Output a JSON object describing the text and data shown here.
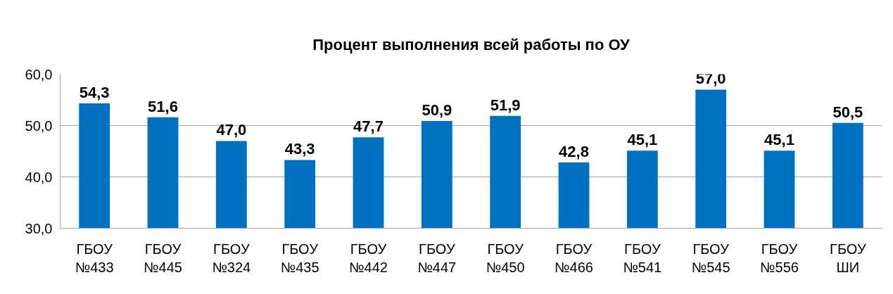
{
  "chart_data": {
    "type": "bar",
    "title": "Процент выполнения всей работы по ОУ",
    "categories": [
      "ГБОУ\n№433",
      "ГБОУ\n№445",
      "ГБОУ\n№324",
      "ГБОУ\n№435",
      "ГБОУ\n№442",
      "ГБОУ\n№447",
      "ГБОУ\n№450",
      "ГБОУ\n№466",
      "ГБОУ\n№541",
      "ГБОУ\n№545",
      "ГБОУ\n№556",
      "ГБОУ\nШИ"
    ],
    "values": [
      54.3,
      51.6,
      47.0,
      43.3,
      47.7,
      50.9,
      51.9,
      42.8,
      45.1,
      57.0,
      45.1,
      50.5
    ],
    "value_labels": [
      "54,3",
      "51,6",
      "47,0",
      "43,3",
      "47,7",
      "50,9",
      "51,9",
      "42,8",
      "45,1",
      "57,0",
      "45,1",
      "50,5"
    ],
    "color": "#0070c0",
    "ylim": [
      30,
      60
    ],
    "yticks": [
      {
        "value": 30,
        "label": "30,0"
      },
      {
        "value": 40,
        "label": "40,0"
      },
      {
        "value": 50,
        "label": "50,0"
      },
      {
        "value": 60,
        "label": "60,0"
      }
    ],
    "grid": "y"
  }
}
